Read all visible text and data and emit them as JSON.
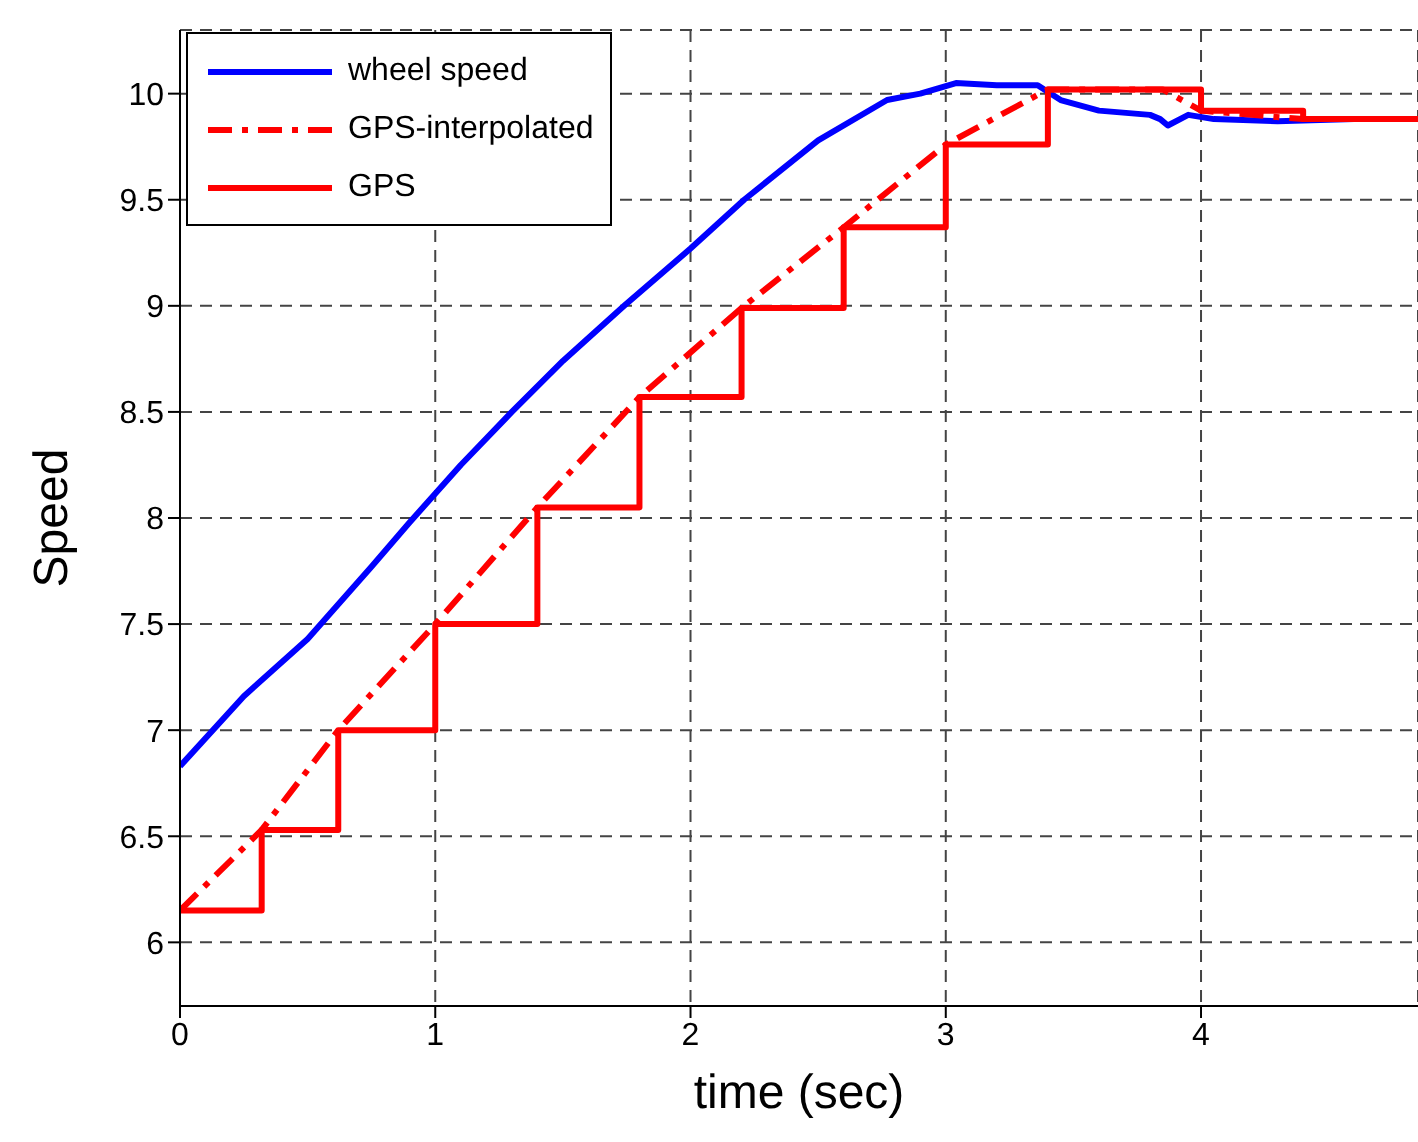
{
  "chart_data": {
    "type": "line",
    "xlabel": "time (sec)",
    "ylabel": "Speed",
    "xlim": [
      0,
      4.85
    ],
    "ylim": [
      5.7,
      10.3
    ],
    "xticks": [
      0,
      1,
      2,
      3,
      4
    ],
    "yticks": [
      6,
      6.5,
      7,
      7.5,
      8,
      8.5,
      9,
      9.5,
      10
    ],
    "grid": true,
    "legend": "top left",
    "marker": "none",
    "series": [
      {
        "name": "wheel speed",
        "color": "#0000ff",
        "line_style": "solid",
        "x": [
          0,
          0.25,
          0.5,
          0.75,
          0.9,
          1.1,
          1.3,
          1.5,
          1.74,
          2.0,
          2.21,
          2.5,
          2.77,
          2.9,
          3.04,
          3.2,
          3.36,
          3.45,
          3.6,
          3.8,
          3.84,
          3.87,
          3.95,
          4.05,
          4.3,
          4.6,
          4.85
        ],
        "values": [
          6.83,
          7.16,
          7.43,
          7.77,
          7.98,
          8.25,
          8.5,
          8.74,
          9.0,
          9.27,
          9.5,
          9.78,
          9.97,
          10.0,
          10.05,
          10.04,
          10.04,
          9.97,
          9.92,
          9.9,
          9.88,
          9.85,
          9.9,
          9.88,
          9.87,
          9.88,
          9.88
        ]
      },
      {
        "name": "GPS-interpolated",
        "color": "#ff0000",
        "line_style": "dashdot",
        "x": [
          0,
          0.32,
          0.62,
          1.0,
          1.4,
          1.8,
          2.2,
          2.6,
          3.0,
          3.4,
          3.85,
          4.0,
          4.4,
          4.85
        ],
        "values": [
          6.15,
          6.53,
          7.0,
          7.5,
          8.05,
          8.57,
          8.99,
          9.37,
          9.76,
          10.02,
          10.02,
          9.92,
          9.88,
          9.88
        ]
      },
      {
        "name": "GPS",
        "type": "step",
        "color": "#ff0000",
        "line_style": "solid",
        "x": [
          0,
          0.32,
          0.62,
          1.0,
          1.4,
          1.8,
          2.2,
          2.6,
          3.0,
          3.4,
          4.0,
          4.4,
          4.85
        ],
        "values": [
          6.15,
          6.53,
          7.0,
          7.5,
          8.05,
          8.57,
          8.99,
          9.37,
          9.76,
          10.02,
          9.92,
          9.88,
          9.88
        ]
      }
    ]
  }
}
